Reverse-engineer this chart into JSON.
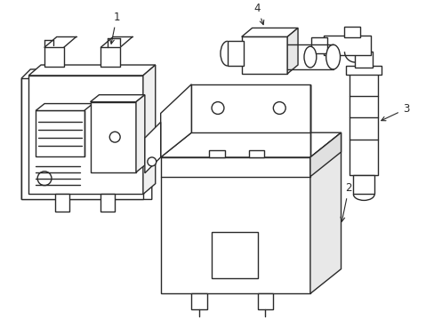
{
  "bg_color": "#ffffff",
  "line_color": "#2a2a2a",
  "line_width": 1.0,
  "fig_width": 4.89,
  "fig_height": 3.6,
  "dpi": 100,
  "label_fontsize": 8.5
}
